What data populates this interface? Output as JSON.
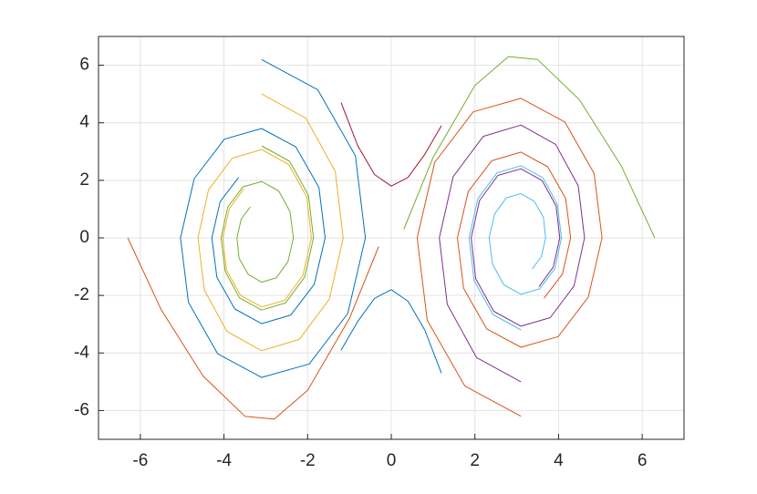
{
  "chart_data": {
    "type": "line",
    "xlim": [
      -7,
      7
    ],
    "ylim": [
      -7,
      7
    ],
    "xticks": [
      -6,
      -4,
      -2,
      0,
      2,
      4,
      6
    ],
    "yticks": [
      -6,
      -4,
      -2,
      0,
      2,
      4,
      6
    ],
    "grid": true,
    "series": [
      {
        "color": "#0072BD",
        "x": [
          -3.1,
          -1.76,
          -0.86,
          -0.62,
          -1.04,
          -1.96,
          -3.1,
          -4.15,
          -4.85,
          -5.04,
          -4.71,
          -3.99,
          -3.1,
          -2.28,
          -1.73,
          -1.58,
          -1.84,
          -2.4,
          -3.1,
          -3.74,
          -4.17,
          -4.29,
          -4.09,
          -3.65
        ],
        "values": [
          6.2,
          5.15,
          2.86,
          0,
          -2.63,
          -4.38,
          -4.85,
          -4.03,
          -2.24,
          0,
          2.06,
          3.43,
          3.8,
          3.16,
          1.75,
          0,
          -1.61,
          -2.68,
          -2.98,
          -2.47,
          -1.37,
          0,
          1.26,
          2.1
        ]
      },
      {
        "color": "#D95319",
        "x": [
          3.1,
          1.76,
          0.86,
          0.62,
          1.04,
          1.96,
          3.1,
          4.15,
          4.85,
          5.04,
          4.71,
          3.99,
          3.1,
          2.28,
          1.73,
          1.58,
          1.84,
          2.4,
          3.1,
          3.74,
          4.17,
          4.29,
          4.09,
          3.65
        ],
        "values": [
          -6.2,
          -5.15,
          -2.86,
          0,
          2.63,
          4.38,
          4.85,
          4.03,
          2.24,
          0,
          -2.06,
          -3.43,
          -3.8,
          -3.16,
          -1.75,
          0,
          1.61,
          2.68,
          2.98,
          2.47,
          1.37,
          0,
          -1.26,
          -2.1
        ]
      },
      {
        "color": "#EDB120",
        "x": [
          -3.1,
          -2.04,
          -1.34,
          -1.15,
          -1.48,
          -2.2,
          -3.1,
          -3.93,
          -4.47,
          -4.62,
          -4.37,
          -3.8,
          -3.1,
          -2.45,
          -2.02,
          -1.91,
          -2.11,
          -2.55,
          -3.1,
          -3.61,
          -3.94,
          -4.03,
          -3.87,
          -3.53
        ],
        "values": [
          5.0,
          4.16,
          2.31,
          0,
          -2.13,
          -3.53,
          -3.92,
          -3.25,
          -1.81,
          0,
          1.67,
          2.77,
          3.07,
          2.55,
          1.42,
          0,
          -1.3,
          -2.17,
          -2.4,
          -1.99,
          -1.11,
          0,
          1.02,
          1.7
        ]
      },
      {
        "color": "#7E2F8E",
        "x": [
          3.1,
          2.04,
          1.34,
          1.15,
          1.48,
          2.2,
          3.1,
          3.93,
          4.47,
          4.62,
          4.37,
          3.8,
          3.1,
          2.45,
          2.02,
          1.91,
          2.11,
          2.55,
          3.1,
          3.61,
          3.94,
          4.03,
          3.87,
          3.53
        ],
        "values": [
          -5.0,
          -4.16,
          -2.31,
          0,
          2.13,
          3.53,
          3.92,
          3.25,
          1.81,
          0,
          -1.67,
          -2.77,
          -3.07,
          -2.55,
          -1.42,
          0,
          1.3,
          2.17,
          2.4,
          1.99,
          1.11,
          0,
          -1.02,
          -1.7
        ]
      },
      {
        "color": "#77AC30",
        "x": [
          -3.1,
          -2.43,
          -1.98,
          -1.86,
          -2.07,
          -2.53,
          -3.1,
          -3.63,
          -3.97,
          -4.07,
          -3.91,
          -3.55,
          -3.1,
          -2.69,
          -2.42,
          -2.34,
          -2.47,
          -2.75,
          -3.1,
          -3.42,
          -3.64,
          -3.69,
          -3.59,
          -3.37
        ],
        "values": [
          3.2,
          2.66,
          1.48,
          0,
          -1.36,
          -2.26,
          -2.51,
          -2.08,
          -1.16,
          0,
          1.07,
          1.77,
          1.96,
          1.63,
          0.91,
          0,
          -0.83,
          -1.39,
          -1.54,
          -1.27,
          -0.71,
          0,
          0.65,
          1.08
        ]
      },
      {
        "color": "#4DBEEE",
        "x": [
          3.1,
          2.43,
          1.98,
          1.86,
          2.07,
          2.53,
          3.1,
          3.63,
          3.97,
          4.07,
          3.91,
          3.55,
          3.1,
          2.69,
          2.42,
          2.34,
          2.47,
          2.75,
          3.1,
          3.42,
          3.64,
          3.69,
          3.59,
          3.37
        ],
        "values": [
          -3.2,
          -2.66,
          -1.48,
          0,
          1.36,
          2.26,
          2.51,
          2.08,
          1.16,
          0,
          -1.07,
          -1.77,
          -1.96,
          -1.63,
          -0.91,
          0,
          0.83,
          1.39,
          1.54,
          1.27,
          0.71,
          0,
          -0.65,
          -1.08
        ]
      },
      {
        "color": "#A2142F",
        "x": [
          -1.2,
          -0.8,
          -0.4,
          0,
          0.4,
          0.8,
          1.2
        ],
        "values": [
          4.7,
          3.2,
          2.2,
          1.8,
          2.1,
          2.9,
          3.9
        ]
      },
      {
        "color": "#0072BD",
        "x": [
          1.2,
          0.8,
          0.4,
          0,
          -0.4,
          -0.8,
          -1.2
        ],
        "values": [
          -4.7,
          -3.2,
          -2.2,
          -1.8,
          -2.1,
          -2.9,
          -3.9
        ]
      },
      {
        "color": "#D95319",
        "x": [
          -6.3,
          -5.5,
          -4.5,
          -3.5,
          -2.8,
          -2.0,
          -1.0,
          -0.3
        ],
        "values": [
          0,
          -2.5,
          -4.8,
          -6.2,
          -6.3,
          -5.3,
          -2.8,
          -0.3
        ]
      },
      {
        "color": "#77AC30",
        "x": [
          6.3,
          5.5,
          4.5,
          3.5,
          2.8,
          2.0,
          1.0,
          0.3
        ],
        "values": [
          0,
          2.5,
          4.8,
          6.2,
          6.3,
          5.3,
          2.8,
          0.3
        ]
      }
    ]
  }
}
